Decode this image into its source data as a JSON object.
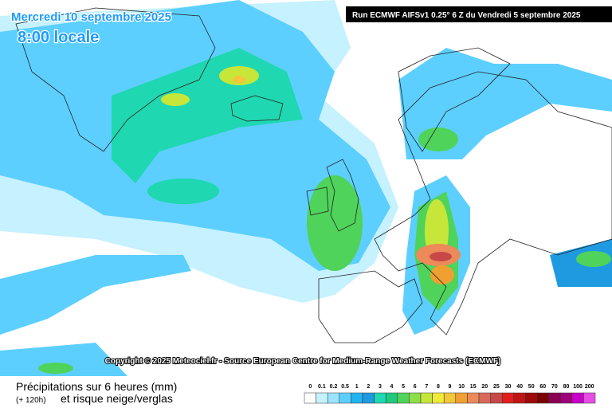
{
  "header": {
    "date": "Mercredi 10 septembre 2025",
    "time": "8:00 locale",
    "run": "Run ECMWF AIFSv1 0.25° 6 Z du Vendredi 5 septembre 2025"
  },
  "copyright": "Copyright © 2025 Meteociel.fr - Source European Centre for Medium-Range Weather Forecasts (ECMWF)",
  "footer": {
    "title": "Précipitations sur 6 heures (mm)",
    "lead": "(+ 120h)",
    "subtitle": "et risque neige/verglas"
  },
  "legend": {
    "labels": [
      0,
      0.1,
      0.2,
      0.5,
      1,
      2,
      3,
      4,
      5,
      6,
      7,
      8,
      9,
      10,
      15,
      20,
      25,
      30,
      40,
      50,
      60,
      70,
      80,
      100,
      200
    ],
    "colors": [
      "#ffffff",
      "#c6f1ff",
      "#9be4ff",
      "#5ccfff",
      "#22b4f0",
      "#1e9be0",
      "#1fd7b0",
      "#1fc97c",
      "#4fd35a",
      "#8ede4a",
      "#c6e63a",
      "#f0ea3a",
      "#f2c83a",
      "#f0a030",
      "#ec8a5a",
      "#d9695a",
      "#c84848",
      "#e01e1e",
      "#c01414",
      "#9e0a0a",
      "#7a0000",
      "#8a0050",
      "#a0007a",
      "#c800c8",
      "#e64de6"
    ]
  }
}
